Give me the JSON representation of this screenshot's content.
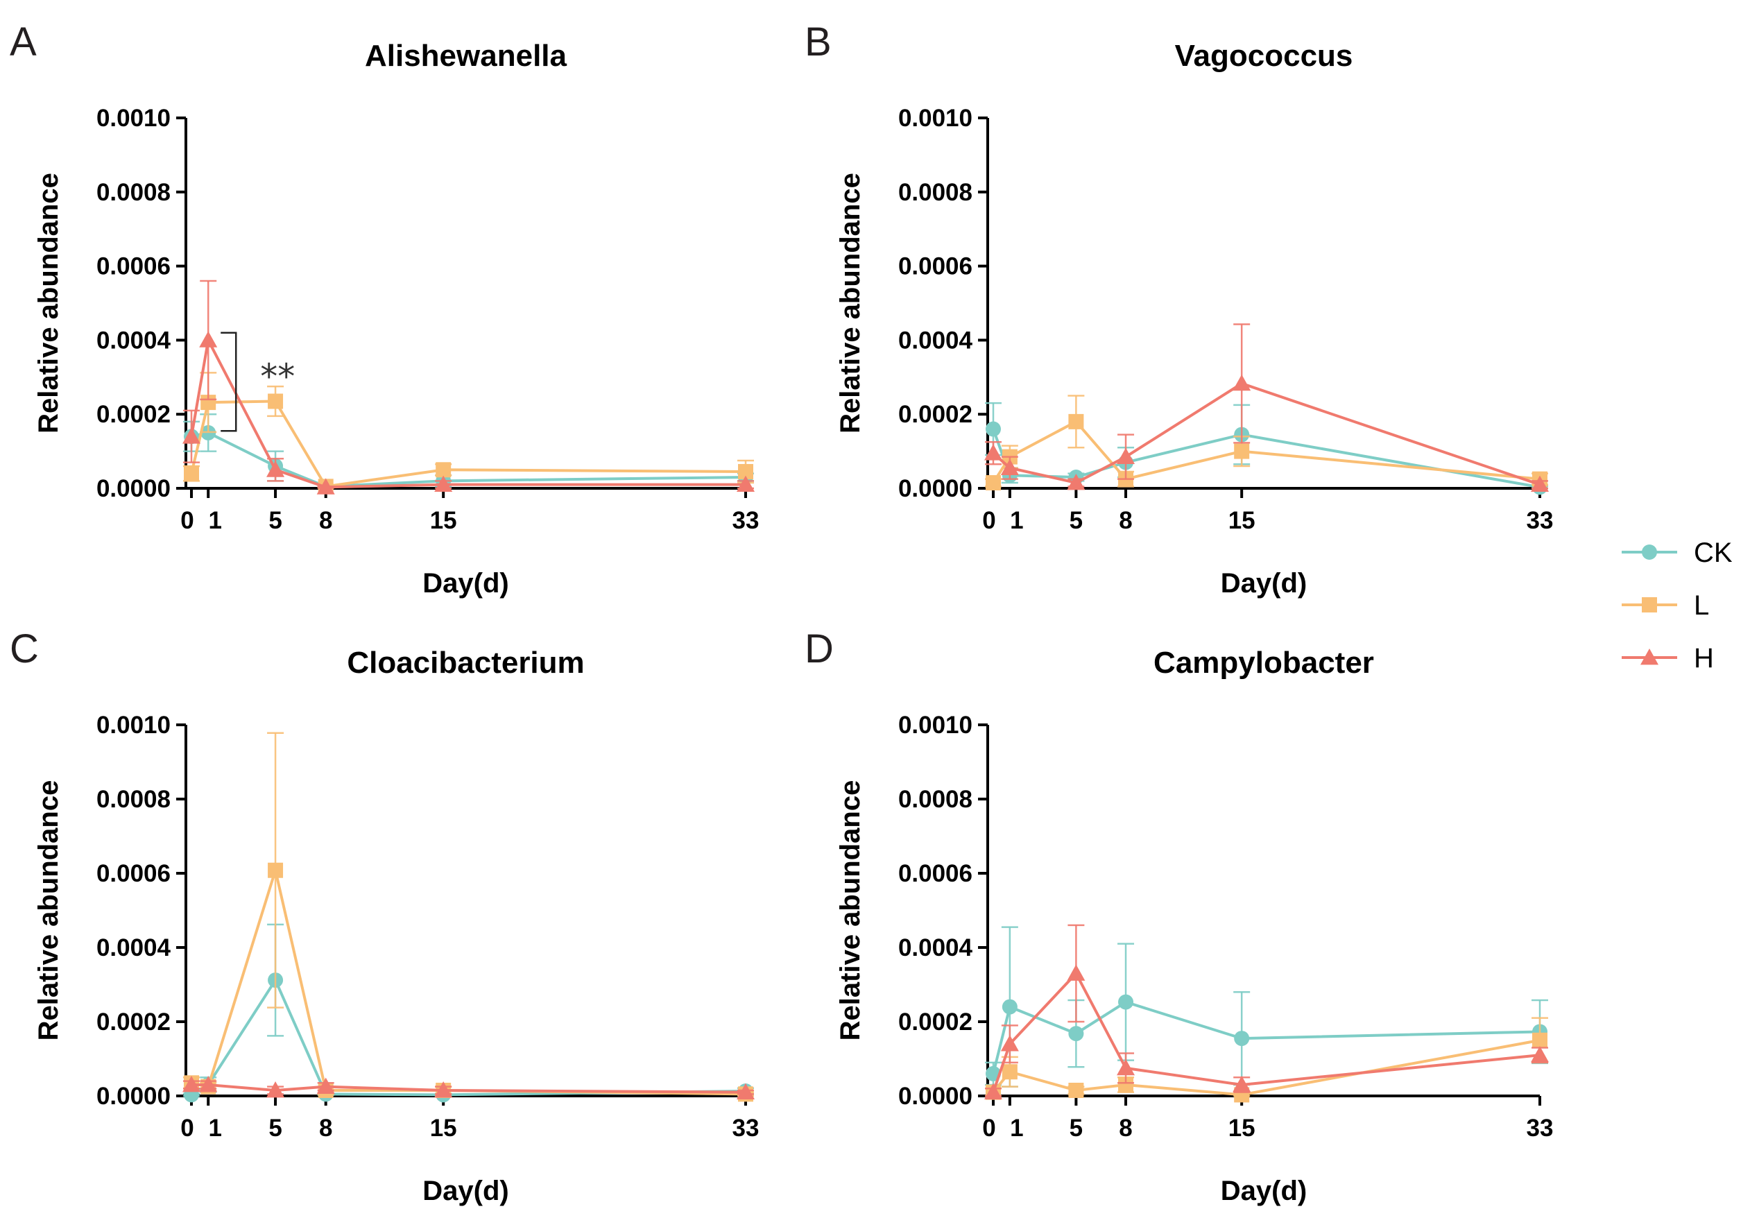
{
  "legend": [
    {
      "name": "CK",
      "color": "#7ecdc6",
      "marker": "circle"
    },
    {
      "name": "L",
      "color": "#f9be74",
      "marker": "square"
    },
    {
      "name": "H",
      "color": "#f07a6e",
      "marker": "triangle"
    }
  ],
  "chart_data": [
    {
      "panel": "A",
      "type": "line",
      "title": "Alishewanella",
      "xlabel": "Day(d)",
      "ylabel": "Relative abundance",
      "x": [
        0,
        1,
        5,
        8,
        15,
        33
      ],
      "xticks": [
        "0",
        "1",
        "5",
        "8",
        "15",
        "33"
      ],
      "yticks": [
        "0.0000",
        "0.0002",
        "0.0004",
        "0.0006",
        "0.0008",
        "0.0010"
      ],
      "ylim": [
        0,
        0.001
      ],
      "series": [
        {
          "name": "CK",
          "values": [
            0.00014,
            0.00015,
            6e-05,
            5e-06,
            2e-05,
            3e-05
          ],
          "errors": [
            4e-05,
            5e-05,
            4e-05,
            3e-06,
            1.5e-05,
            1e-05
          ]
        },
        {
          "name": "L",
          "values": [
            4e-05,
            0.000232,
            0.000235,
            5e-06,
            5e-05,
            4.5e-05
          ],
          "errors": [
            2e-05,
            8e-05,
            4e-05,
            3e-06,
            1.5e-05,
            3e-05
          ]
        },
        {
          "name": "H",
          "values": [
            0.00014,
            0.0004,
            5e-05,
            3e-06,
            1e-05,
            1e-05
          ],
          "errors": [
            7e-05,
            0.00016,
            3e-05,
            2e-06,
            1e-05,
            1e-05
          ]
        }
      ],
      "annotation": "**"
    },
    {
      "panel": "B",
      "type": "line",
      "title": "Vagococcus",
      "xlabel": "Day(d)",
      "ylabel": "Relative abundance",
      "x": [
        0,
        1,
        5,
        8,
        15,
        33
      ],
      "xticks": [
        "0",
        "1",
        "5",
        "8",
        "15",
        "33"
      ],
      "yticks": [
        "0.0000",
        "0.0002",
        "0.0004",
        "0.0006",
        "0.0008",
        "0.0010"
      ],
      "ylim": [
        0,
        0.001
      ],
      "series": [
        {
          "name": "CK",
          "values": [
            0.00016,
            3.5e-05,
            3e-05,
            7e-05,
            0.000145,
            3e-06
          ],
          "errors": [
            7e-05,
            2e-05,
            1e-05,
            4e-05,
            8e-05,
            3e-06
          ]
        },
        {
          "name": "L",
          "values": [
            1.5e-05,
            8.5e-05,
            0.00018,
            2.5e-05,
            0.0001,
            2.5e-05
          ],
          "errors": [
            1e-05,
            3e-05,
            7e-05,
            2e-05,
            4e-05,
            1.5e-05
          ]
        },
        {
          "name": "H",
          "values": [
            9.5e-05,
            5.5e-05,
            1.5e-05,
            8.5e-05,
            0.000283,
            1e-05
          ],
          "errors": [
            3e-05,
            3e-05,
            1e-05,
            6e-05,
            0.00016,
            1e-05
          ]
        }
      ]
    },
    {
      "panel": "C",
      "type": "line",
      "title": "Cloacibacterium",
      "xlabel": "Day(d)",
      "ylabel": "Relative abundance",
      "x": [
        0,
        1,
        5,
        8,
        15,
        33
      ],
      "xticks": [
        "0",
        "1",
        "5",
        "8",
        "15",
        "33"
      ],
      "yticks": [
        "0.0000",
        "0.0002",
        "0.0004",
        "0.0006",
        "0.0008",
        "0.0010"
      ],
      "ylim": [
        0,
        0.001
      ],
      "series": [
        {
          "name": "CK",
          "values": [
            3e-06,
            3e-05,
            0.000312,
            5e-06,
            3e-06,
            1.3e-05
          ],
          "errors": [
            3e-06,
            2e-05,
            0.00015,
            3e-06,
            3e-06,
            8e-06
          ]
        },
        {
          "name": "L",
          "values": [
            3.5e-05,
            2.5e-05,
            0.000608,
            1.5e-05,
            1.5e-05,
            5e-06
          ],
          "errors": [
            1.5e-05,
            1e-05,
            0.00037,
            1e-05,
            1e-05,
            5e-06
          ]
        },
        {
          "name": "H",
          "values": [
            3e-05,
            3e-05,
            1.5e-05,
            2.5e-05,
            1.5e-05,
            1e-05
          ],
          "errors": [
            1e-05,
            1e-05,
            1e-05,
            1e-05,
            1e-05,
            5e-06
          ]
        }
      ]
    },
    {
      "panel": "D",
      "type": "line",
      "title": "Campylobacter",
      "xlabel": "Day(d)",
      "ylabel": "Relative abundance",
      "x": [
        0,
        1,
        5,
        8,
        15,
        33
      ],
      "xticks": [
        "0",
        "1",
        "5",
        "8",
        "15",
        "33"
      ],
      "yticks": [
        "0.0000",
        "0.0002",
        "0.0004",
        "0.0006",
        "0.0008",
        "0.0010"
      ],
      "ylim": [
        0,
        0.001
      ],
      "series": [
        {
          "name": "CK",
          "values": [
            6e-05,
            0.00024,
            0.000168,
            0.000253,
            0.000155,
            0.000173
          ],
          "errors": [
            3e-05,
            0.000215,
            9e-05,
            0.000157,
            0.000125,
            8.5e-05
          ]
        },
        {
          "name": "L",
          "values": [
            1e-05,
            6.5e-05,
            1.5e-05,
            3e-05,
            3e-06,
            0.00015
          ],
          "errors": [
            1e-05,
            4e-05,
            1e-05,
            2e-05,
            3e-06,
            6e-05
          ]
        },
        {
          "name": "H",
          "values": [
            1e-05,
            0.00014,
            0.00033,
            7.5e-05,
            3e-05,
            0.00011
          ],
          "errors": [
            1e-05,
            5e-05,
            0.00013,
            4e-05,
            2e-05,
            2e-05
          ]
        }
      ]
    }
  ]
}
